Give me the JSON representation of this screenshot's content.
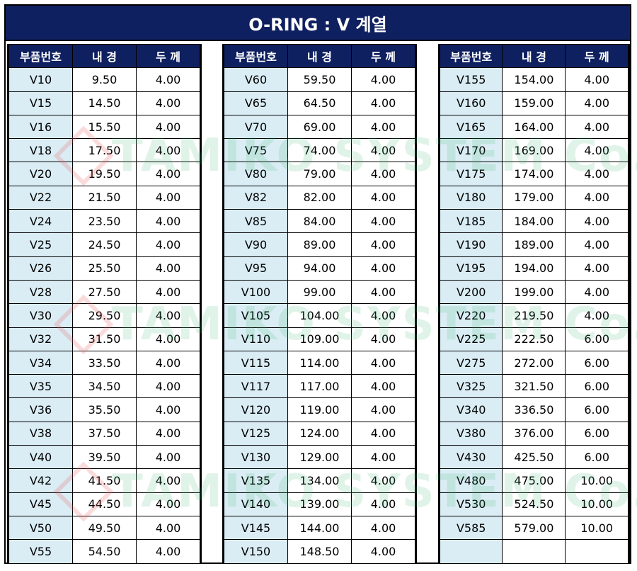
{
  "title": "O-RING : V 계열",
  "headers": {
    "code": "부품번호",
    "id": "내 경",
    "thk": "두 께"
  },
  "watermark": "TAMIKO SYSTEM Co.,Ltd.",
  "colors": {
    "header_bg": "#0f2060",
    "code_bg": "#daedf5"
  },
  "columns": [
    {
      "rows": [
        {
          "code": "V10",
          "id": "9.50",
          "thk": "4.00"
        },
        {
          "code": "V15",
          "id": "14.50",
          "thk": "4.00"
        },
        {
          "code": "V16",
          "id": "15.50",
          "thk": "4.00"
        },
        {
          "code": "V18",
          "id": "17.50",
          "thk": "4.00"
        },
        {
          "code": "V20",
          "id": "19.50",
          "thk": "4.00"
        },
        {
          "code": "V22",
          "id": "21.50",
          "thk": "4.00"
        },
        {
          "code": "V24",
          "id": "23.50",
          "thk": "4.00"
        },
        {
          "code": "V25",
          "id": "24.50",
          "thk": "4.00"
        },
        {
          "code": "V26",
          "id": "25.50",
          "thk": "4.00"
        },
        {
          "code": "V28",
          "id": "27.50",
          "thk": "4.00"
        },
        {
          "code": "V30",
          "id": "29.50",
          "thk": "4.00"
        },
        {
          "code": "V32",
          "id": "31.50",
          "thk": "4.00"
        },
        {
          "code": "V34",
          "id": "33.50",
          "thk": "4.00"
        },
        {
          "code": "V35",
          "id": "34.50",
          "thk": "4.00"
        },
        {
          "code": "V36",
          "id": "35.50",
          "thk": "4.00"
        },
        {
          "code": "V38",
          "id": "37.50",
          "thk": "4.00"
        },
        {
          "code": "V40",
          "id": "39.50",
          "thk": "4.00"
        },
        {
          "code": "V42",
          "id": "41.50",
          "thk": "4.00"
        },
        {
          "code": "V45",
          "id": "44.50",
          "thk": "4.00"
        },
        {
          "code": "V50",
          "id": "49.50",
          "thk": "4.00"
        },
        {
          "code": "V55",
          "id": "54.50",
          "thk": "4.00"
        }
      ]
    },
    {
      "rows": [
        {
          "code": "V60",
          "id": "59.50",
          "thk": "4.00"
        },
        {
          "code": "V65",
          "id": "64.50",
          "thk": "4.00"
        },
        {
          "code": "V70",
          "id": "69.00",
          "thk": "4.00"
        },
        {
          "code": "V75",
          "id": "74.00",
          "thk": "4.00"
        },
        {
          "code": "V80",
          "id": "79.00",
          "thk": "4.00"
        },
        {
          "code": "V82",
          "id": "82.00",
          "thk": "4.00"
        },
        {
          "code": "V85",
          "id": "84.00",
          "thk": "4.00"
        },
        {
          "code": "V90",
          "id": "89.00",
          "thk": "4.00"
        },
        {
          "code": "V95",
          "id": "94.00",
          "thk": "4.00"
        },
        {
          "code": "V100",
          "id": "99.00",
          "thk": "4.00"
        },
        {
          "code": "V105",
          "id": "104.00",
          "thk": "4.00"
        },
        {
          "code": "V110",
          "id": "109.00",
          "thk": "4.00"
        },
        {
          "code": "V115",
          "id": "114.00",
          "thk": "4.00"
        },
        {
          "code": "V117",
          "id": "117.00",
          "thk": "4.00"
        },
        {
          "code": "V120",
          "id": "119.00",
          "thk": "4.00"
        },
        {
          "code": "V125",
          "id": "124.00",
          "thk": "4.00"
        },
        {
          "code": "V130",
          "id": "129.00",
          "thk": "4.00"
        },
        {
          "code": "V135",
          "id": "134.00",
          "thk": "4.00"
        },
        {
          "code": "V140",
          "id": "139.00",
          "thk": "4.00"
        },
        {
          "code": "V145",
          "id": "144.00",
          "thk": "4.00"
        },
        {
          "code": "V150",
          "id": "148.50",
          "thk": "4.00"
        }
      ]
    },
    {
      "rows": [
        {
          "code": "V155",
          "id": "154.00",
          "thk": "4.00"
        },
        {
          "code": "V160",
          "id": "159.00",
          "thk": "4.00"
        },
        {
          "code": "V165",
          "id": "164.00",
          "thk": "4.00"
        },
        {
          "code": "V170",
          "id": "169.00",
          "thk": "4.00"
        },
        {
          "code": "V175",
          "id": "174.00",
          "thk": "4.00"
        },
        {
          "code": "V180",
          "id": "179.00",
          "thk": "4.00"
        },
        {
          "code": "V185",
          "id": "184.00",
          "thk": "4.00"
        },
        {
          "code": "V190",
          "id": "189.00",
          "thk": "4.00"
        },
        {
          "code": "V195",
          "id": "194.00",
          "thk": "4.00"
        },
        {
          "code": "V200",
          "id": "199.00",
          "thk": "4.00"
        },
        {
          "code": "V220",
          "id": "219.50",
          "thk": "4.00"
        },
        {
          "code": "V225",
          "id": "222.50",
          "thk": "6.00"
        },
        {
          "code": "V275",
          "id": "272.00",
          "thk": "6.00"
        },
        {
          "code": "V325",
          "id": "321.50",
          "thk": "6.00"
        },
        {
          "code": "V340",
          "id": "336.50",
          "thk": "6.00"
        },
        {
          "code": "V380",
          "id": "376.00",
          "thk": "6.00"
        },
        {
          "code": "V430",
          "id": "425.50",
          "thk": "6.00"
        },
        {
          "code": "V480",
          "id": "475.00",
          "thk": "10.00"
        },
        {
          "code": "V530",
          "id": "524.50",
          "thk": "10.00"
        },
        {
          "code": "V585",
          "id": "579.00",
          "thk": "10.00"
        },
        {
          "code": "",
          "id": "",
          "thk": ""
        }
      ]
    }
  ]
}
